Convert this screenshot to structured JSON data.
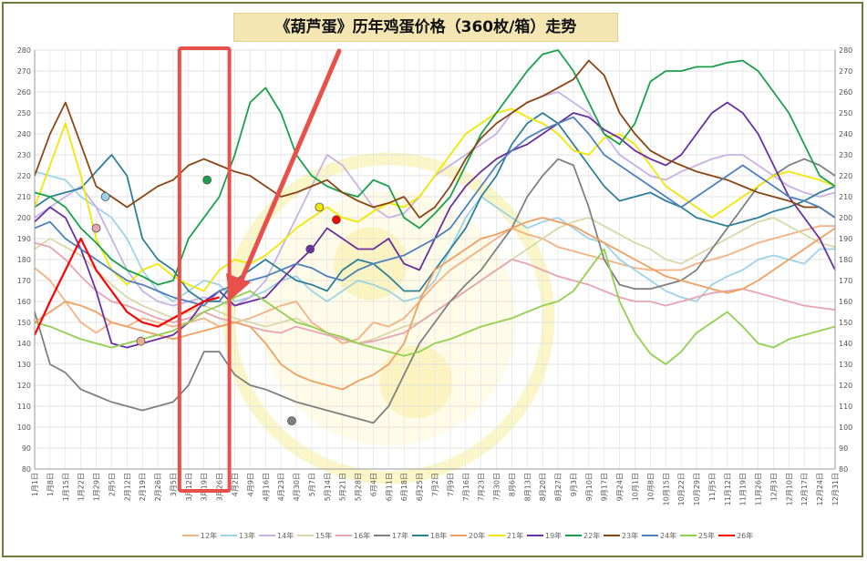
{
  "chart_data": {
    "type": "line",
    "title": "《葫芦蛋》历年鸡蛋价格（360枚/箱）走势",
    "ylim": [
      80,
      280
    ],
    "y_ticks": [
      80,
      90,
      100,
      110,
      120,
      130,
      140,
      150,
      160,
      170,
      180,
      190,
      200,
      210,
      220,
      230,
      240,
      250,
      260,
      270,
      280
    ],
    "x_ticks": [
      "1月1日",
      "1月8日",
      "1月15日",
      "1月22日",
      "1月29日",
      "2月5日",
      "2月12日",
      "2月19日",
      "2月26日",
      "3月5日",
      "3月12日",
      "3月19日",
      "3月26日",
      "4月2日",
      "4月9日",
      "4月16日",
      "4月23日",
      "4月30日",
      "5月7日",
      "5月14日",
      "5月21日",
      "5月28日",
      "6月4日",
      "6月11日",
      "6月18日",
      "6月25日",
      "7月2日",
      "7月9日",
      "7月16日",
      "7月23日",
      "7月30日",
      "8月6日",
      "8月13日",
      "8月20日",
      "8月27日",
      "9月3日",
      "9月10日",
      "9月17日",
      "9月24日",
      "10月1日",
      "10月8日",
      "10月15日",
      "10月22日",
      "10月29日",
      "11月5日",
      "11月12日",
      "11月19日",
      "11月26日",
      "12月3日",
      "12月10日",
      "12月17日",
      "12月24日",
      "12月31日"
    ],
    "highlight_range": [
      "3月12日",
      "3月26日"
    ],
    "series": [
      {
        "name": "12年",
        "color": "#f4b183",
        "values": [
          176,
          170,
          160,
          150,
          145,
          150,
          148,
          152,
          150,
          148,
          150,
          152,
          148,
          150,
          152,
          155,
          158,
          160,
          150,
          145,
          140,
          142,
          150,
          148,
          152,
          160,
          168,
          175,
          180,
          185,
          190,
          195,
          192,
          190,
          186,
          184,
          182,
          180,
          178,
          176,
          175,
          175,
          175,
          178,
          180,
          182,
          185,
          188,
          190,
          192,
          194,
          196,
          196
        ]
      },
      {
        "name": "13年",
        "color": "#9dd3e6",
        "values": [
          222,
          220,
          218,
          210,
          205,
          200,
          190,
          175,
          165,
          160,
          165,
          170,
          168,
          160,
          162,
          165,
          170,
          172,
          165,
          160,
          165,
          170,
          168,
          165,
          160,
          162,
          170,
          185,
          200,
          210,
          205,
          200,
          195,
          198,
          200,
          195,
          190,
          188,
          180,
          175,
          170,
          165,
          162,
          160,
          168,
          172,
          175,
          180,
          182,
          180,
          178,
          185,
          185
        ]
      },
      {
        "name": "14年",
        "color": "#c5b3e6",
        "values": [
          200,
          205,
          210,
          215,
          205,
          190,
          175,
          165,
          160,
          158,
          160,
          162,
          160,
          158,
          162,
          170,
          185,
          200,
          215,
          230,
          225,
          215,
          205,
          200,
          202,
          210,
          220,
          225,
          230,
          235,
          240,
          250,
          255,
          258,
          260,
          255,
          250,
          240,
          230,
          225,
          220,
          218,
          222,
          225,
          228,
          230,
          230,
          225,
          220,
          215,
          212,
          210,
          212
        ]
      },
      {
        "name": "15年",
        "color": "#d8d8a8",
        "values": [
          185,
          190,
          186,
          182,
          175,
          168,
          162,
          158,
          155,
          152,
          155,
          158,
          155,
          152,
          150,
          148,
          150,
          152,
          148,
          145,
          143,
          140,
          142,
          145,
          148,
          150,
          155,
          160,
          165,
          170,
          175,
          180,
          185,
          190,
          195,
          198,
          200,
          196,
          192,
          188,
          185,
          180,
          178,
          182,
          186,
          190,
          194,
          198,
          200,
          196,
          192,
          188,
          186
        ]
      },
      {
        "name": "16年",
        "color": "#e6a5b0",
        "values": [
          188,
          186,
          180,
          172,
          165,
          160,
          158,
          155,
          152,
          150,
          152,
          155,
          152,
          150,
          148,
          146,
          145,
          148,
          146,
          144,
          142,
          140,
          141,
          143,
          145,
          150,
          155,
          160,
          165,
          170,
          175,
          180,
          178,
          175,
          172,
          170,
          168,
          165,
          162,
          160,
          160,
          158,
          160,
          162,
          164,
          165,
          166,
          164,
          162,
          160,
          158,
          157,
          156
        ]
      },
      {
        "name": "17年",
        "color": "#808080",
        "values": [
          155,
          130,
          126,
          118,
          115,
          112,
          110,
          108,
          110,
          112,
          120,
          136,
          136,
          125,
          120,
          118,
          115,
          112,
          110,
          108,
          106,
          104,
          102,
          110,
          125,
          140,
          150,
          160,
          168,
          175,
          185,
          195,
          210,
          220,
          228,
          225,
          205,
          180,
          168,
          166,
          166,
          168,
          170,
          175,
          185,
          195,
          205,
          215,
          220,
          225,
          228,
          225,
          220
        ]
      },
      {
        "name": "18年",
        "color": "#2e7f99",
        "values": [
          205,
          210,
          212,
          214,
          222,
          230,
          220,
          190,
          180,
          175,
          165,
          160,
          160,
          170,
          175,
          180,
          175,
          170,
          168,
          165,
          175,
          180,
          178,
          172,
          165,
          165,
          175,
          185,
          195,
          210,
          220,
          235,
          245,
          250,
          245,
          235,
          225,
          215,
          208,
          210,
          212,
          208,
          205,
          200,
          198,
          196,
          198,
          200,
          203,
          205,
          208,
          212,
          215
        ]
      },
      {
        "name": "20年",
        "color": "#f0a060",
        "values": [
          150,
          155,
          160,
          158,
          155,
          150,
          148,
          146,
          144,
          142,
          144,
          146,
          148,
          150,
          148,
          140,
          130,
          125,
          122,
          120,
          118,
          122,
          125,
          130,
          140,
          160,
          175,
          180,
          185,
          190,
          192,
          195,
          198,
          200,
          198,
          196,
          192,
          188,
          184,
          180,
          176,
          172,
          170,
          168,
          166,
          164,
          166,
          170,
          175,
          180,
          185,
          190,
          195
        ]
      },
      {
        "name": "21年",
        "color": "#f3e600",
        "values": [
          205,
          225,
          245,
          220,
          190,
          175,
          168,
          175,
          178,
          172,
          168,
          165,
          175,
          180,
          178,
          182,
          188,
          195,
          200,
          205,
          200,
          198,
          203,
          207,
          205,
          210,
          220,
          230,
          240,
          245,
          250,
          252,
          248,
          245,
          240,
          232,
          230,
          238,
          240,
          235,
          225,
          215,
          210,
          205,
          200,
          205,
          210,
          215,
          220,
          222,
          220,
          218,
          215
        ]
      },
      {
        "name": "19年",
        "color": "#6a2fa0",
        "values": [
          198,
          205,
          200,
          185,
          165,
          140,
          138,
          140,
          142,
          144,
          150,
          160,
          165,
          158,
          160,
          162,
          170,
          178,
          185,
          195,
          190,
          185,
          185,
          190,
          178,
          175,
          190,
          205,
          215,
          222,
          228,
          232,
          235,
          240,
          245,
          250,
          248,
          242,
          238,
          232,
          228,
          225,
          230,
          240,
          250,
          255,
          250,
          240,
          225,
          210,
          200,
          190,
          175
        ]
      },
      {
        "name": "22年",
        "color": "#19a04b",
        "values": [
          212,
          210,
          205,
          195,
          188,
          180,
          175,
          172,
          168,
          170,
          190,
          200,
          210,
          230,
          255,
          262,
          250,
          230,
          220,
          215,
          212,
          210,
          218,
          215,
          200,
          195,
          202,
          210,
          225,
          240,
          250,
          260,
          270,
          278,
          280,
          270,
          255,
          240,
          235,
          245,
          265,
          270,
          270,
          272,
          272,
          274,
          275,
          270,
          260,
          250,
          235,
          220,
          215
        ]
      },
      {
        "name": "23年",
        "color": "#8b4513",
        "values": [
          220,
          240,
          255,
          235,
          215,
          210,
          205,
          210,
          215,
          218,
          225,
          228,
          225,
          222,
          220,
          215,
          210,
          212,
          215,
          218,
          212,
          208,
          205,
          207,
          210,
          200,
          205,
          215,
          228,
          238,
          245,
          250,
          255,
          258,
          262,
          266,
          275,
          268,
          250,
          240,
          232,
          228,
          225,
          222,
          220,
          218,
          215,
          212,
          210,
          208,
          205,
          205,
          200
        ]
      },
      {
        "name": "24年",
        "color": "#4f81bd",
        "values": [
          195,
          198,
          190,
          185,
          180,
          175,
          170,
          168,
          165,
          162,
          160,
          158,
          165,
          168,
          170,
          172,
          175,
          178,
          176,
          172,
          170,
          175,
          178,
          180,
          182,
          186,
          190,
          195,
          205,
          215,
          225,
          232,
          238,
          242,
          245,
          248,
          240,
          230,
          225,
          220,
          215,
          210,
          205,
          210,
          215,
          220,
          225,
          220,
          215,
          210,
          208,
          205,
          200
        ]
      },
      {
        "name": "25年",
        "color": "#92d050",
        "values": [
          150,
          148,
          145,
          142,
          140,
          138,
          140,
          142,
          144,
          146,
          150,
          155,
          158,
          162,
          165,
          160,
          155,
          150,
          148,
          145,
          143,
          140,
          138,
          136,
          134,
          136,
          140,
          142,
          145,
          148,
          150,
          152,
          155,
          158,
          160,
          165,
          175,
          185,
          160,
          145,
          135,
          130,
          136,
          145,
          150,
          155,
          148,
          140,
          138,
          142,
          144,
          146,
          148
        ]
      },
      {
        "name": "26年",
        "color": "#ff0000",
        "values": [
          144,
          160,
          175,
          190,
          175,
          165,
          155,
          150,
          148,
          152,
          156,
          160,
          162
        ]
      }
    ],
    "markers": [
      {
        "series": "16年",
        "color": "#e8b090",
        "x_index": 6.9,
        "y": 141
      },
      {
        "series": "16年",
        "color": "#e6a5b0",
        "x_index": 4,
        "y": 195
      },
      {
        "series": "13年",
        "color": "#9dd3e6",
        "x_index": 4.6,
        "y": 210
      },
      {
        "series": "22年",
        "color": "#19a04b",
        "x_index": 11.2,
        "y": 218
      },
      {
        "series": "19年",
        "color": "#6a2fa0",
        "x_index": 17.9,
        "y": 185
      },
      {
        "series": "21年",
        "color": "#f3e600",
        "x_index": 18.5,
        "y": 205
      },
      {
        "series": "26年",
        "color": "#ff0000",
        "x_index": 19.6,
        "y": 199
      },
      {
        "series": "17年",
        "color": "#808080",
        "x_index": 16.7,
        "y": 103
      }
    ],
    "legend": [
      "12年",
      "13年",
      "14年",
      "15年",
      "16年",
      "17年",
      "18年",
      "20年",
      "21年",
      "19年",
      "22年",
      "23年",
      "24年",
      "25年",
      "26年"
    ],
    "legend_position": "bottom"
  }
}
